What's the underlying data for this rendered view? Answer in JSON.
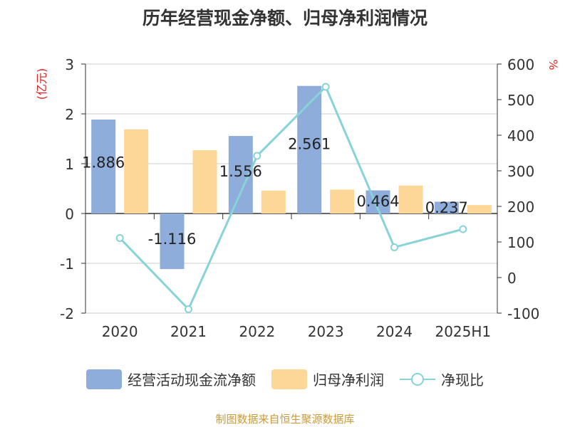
{
  "chart_data": {
    "type": "bar",
    "title": "历年经营现金净额、归母净利润情况",
    "categories": [
      "2020",
      "2021",
      "2022",
      "2023",
      "2024",
      "2025H1"
    ],
    "ylabel_left": "(亿元)",
    "ylabel_right": "%",
    "ylim_left": [
      -2,
      3
    ],
    "ylim_right": [
      -100,
      600
    ],
    "yticks_left": [
      "3",
      "2",
      "1",
      "0",
      "-1",
      "-2"
    ],
    "yticks_right": [
      "600",
      "500",
      "400",
      "300",
      "200",
      "100",
      "0",
      "-100"
    ],
    "series": [
      {
        "name": "经营活动现金流净额",
        "type": "bar",
        "axis": "left",
        "color": "#8eadda",
        "values": [
          1.886,
          -1.116,
          1.556,
          2.561,
          0.464,
          0.237
        ],
        "data_labels": [
          "1.886",
          "-1.116",
          "1.556",
          "2.561",
          "0.464",
          "0.237"
        ]
      },
      {
        "name": "归母净利润",
        "type": "bar",
        "axis": "left",
        "color": "#fdd797",
        "values": [
          1.69,
          1.27,
          0.46,
          0.48,
          0.56,
          0.17
        ]
      },
      {
        "name": "净现比",
        "type": "line",
        "axis": "right",
        "color": "#88d3d8",
        "values": [
          111,
          -89,
          342,
          536,
          85,
          136
        ]
      }
    ]
  },
  "legend": {
    "items": [
      {
        "label": "经营活动现金流净额",
        "color": "#8eadda"
      },
      {
        "label": "归母净利润",
        "color": "#fdd797"
      },
      {
        "label": "净现比",
        "color": "#88d3d8"
      }
    ]
  },
  "source": "制图数据来自恒生聚源数据库"
}
